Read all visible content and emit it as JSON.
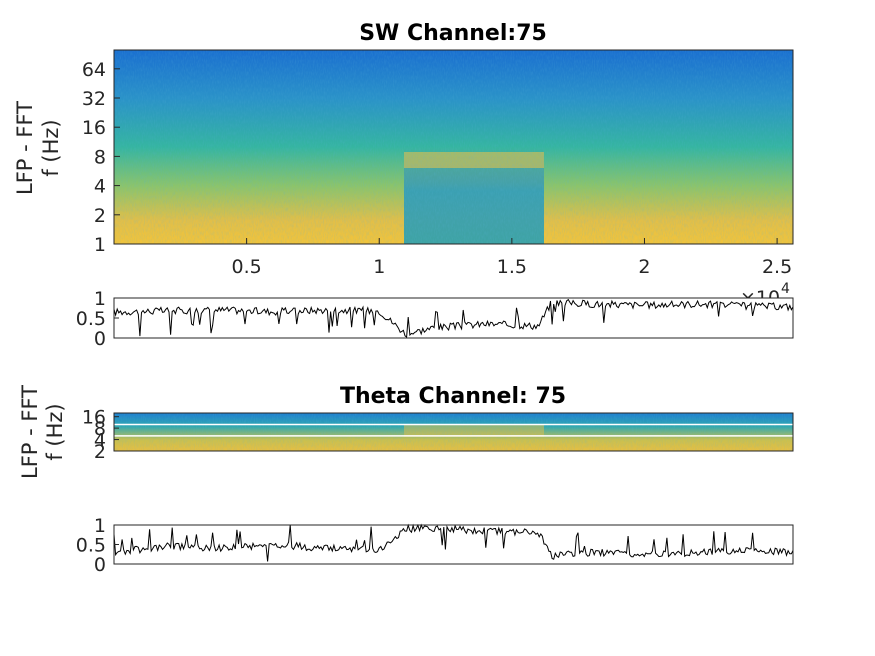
{
  "chart_data": [
    {
      "type": "heatmap",
      "title": "SW Channel:75",
      "ylabel_lines": [
        "LFP - FFT",
        "f (Hz)"
      ],
      "y_scale": "log2",
      "y_ticks": [
        1,
        2,
        4,
        8,
        16,
        32,
        64
      ],
      "ylim": [
        1,
        100
      ],
      "x_ticks": [
        0.5,
        1,
        1.5,
        2,
        2.5
      ],
      "x_tick_labels": [
        "0.5",
        "1",
        "1.5",
        "2",
        "2.5"
      ],
      "x_exponent_label": "×10",
      "x_exponent_power": "4",
      "xlim": [
        0,
        2.56
      ],
      "colormap": "parula",
      "colors": {
        "low": "#1f78c8",
        "mid": "#2ab0a0",
        "high": "#f0c040"
      },
      "features": "high power below ~8 Hz except 1.1–1.6 ×10^4, where a band near 8–10 Hz appears"
    },
    {
      "type": "line",
      "ylabel": "",
      "y_ticks": [
        0,
        0.5,
        1
      ],
      "y_tick_labels": [
        "0",
        "0.5",
        "1"
      ],
      "ylim": [
        0,
        1
      ],
      "xlim": [
        0,
        2.56
      ],
      "series": [
        {
          "color": "#000000",
          "x": [
            0,
            0.2,
            0.4,
            0.6,
            0.8,
            1.0,
            1.1,
            1.2,
            1.4,
            1.6,
            1.65,
            1.8,
            2.0,
            2.2,
            2.4,
            2.56
          ],
          "values": [
            0.65,
            0.68,
            0.7,
            0.66,
            0.7,
            0.68,
            0.1,
            0.25,
            0.35,
            0.3,
            0.9,
            0.85,
            0.82,
            0.85,
            0.8,
            0.78
          ]
        }
      ]
    },
    {
      "type": "heatmap",
      "title": "Theta Channel: 75",
      "ylabel_lines": [
        "LFP - FFT",
        "f (Hz)"
      ],
      "y_scale": "log2",
      "y_ticks": [
        2,
        4,
        8,
        16
      ],
      "ylim": [
        2,
        20
      ],
      "xlim": [
        0,
        2.56
      ],
      "colormap": "parula",
      "band_lines_hz": [
        5,
        10
      ],
      "features": "bright band near 6–8 Hz, strongest between 1.1 and 1.6 ×10^4"
    },
    {
      "type": "line",
      "ylabel": "",
      "y_ticks": [
        0,
        0.5,
        1
      ],
      "y_tick_labels": [
        "0",
        "0.5",
        "1"
      ],
      "ylim": [
        0,
        1
      ],
      "xlim": [
        0,
        2.56
      ],
      "series": [
        {
          "color": "#000000",
          "x": [
            0,
            0.2,
            0.4,
            0.6,
            0.8,
            1.0,
            1.1,
            1.2,
            1.4,
            1.6,
            1.65,
            1.8,
            2.0,
            2.2,
            2.4,
            2.56
          ],
          "values": [
            0.3,
            0.45,
            0.4,
            0.5,
            0.4,
            0.35,
            0.9,
            0.92,
            0.85,
            0.82,
            0.2,
            0.3,
            0.25,
            0.3,
            0.35,
            0.3
          ]
        }
      ]
    }
  ]
}
